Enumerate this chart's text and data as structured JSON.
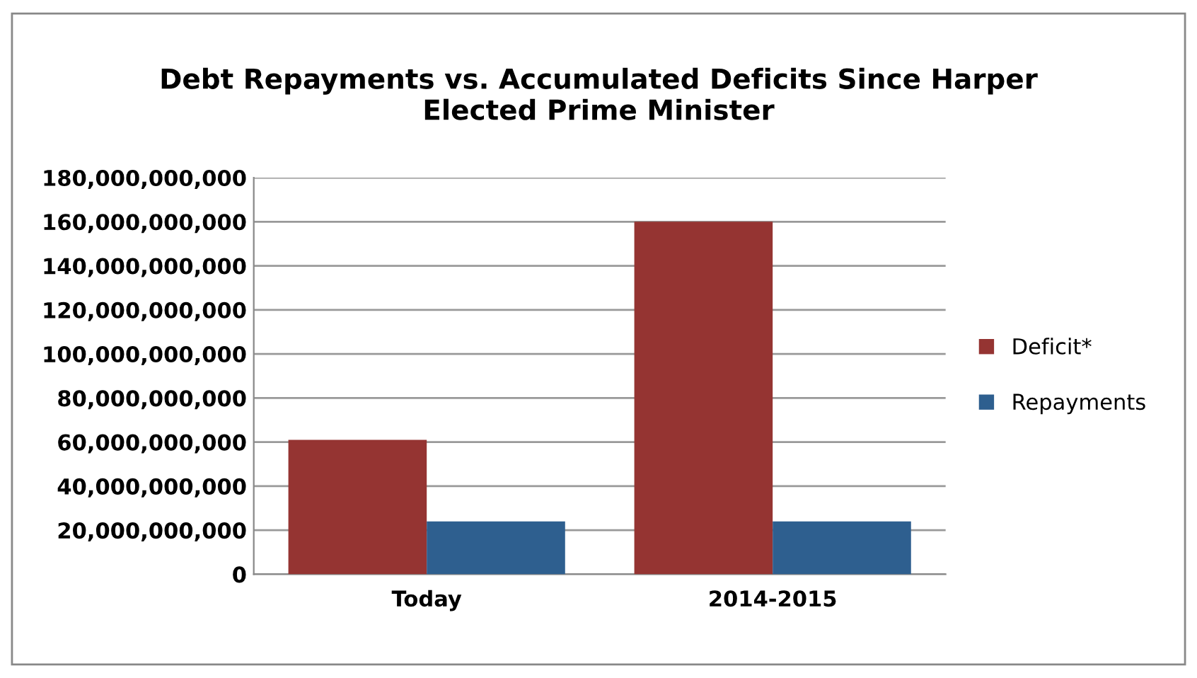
{
  "chart_data": {
    "type": "bar",
    "title": "Debt Repayments vs. Accumulated Deficits Since Harper\nElected Prime Minister",
    "categories": [
      "Today",
      "2014-2015"
    ],
    "series": [
      {
        "name": "Deficit*",
        "color": "#953432",
        "values": [
          61000000000,
          160000000000
        ]
      },
      {
        "name": "Repayments",
        "color": "#2e5f8f",
        "values": [
          24000000000,
          24000000000
        ]
      }
    ],
    "ylim": [
      0,
      180000000000
    ],
    "yticks": [
      {
        "value": 0,
        "label": "0"
      },
      {
        "value": 20000000000,
        "label": "20,000,000,000"
      },
      {
        "value": 40000000000,
        "label": "40,000,000,000"
      },
      {
        "value": 60000000000,
        "label": "60,000,000,000"
      },
      {
        "value": 80000000000,
        "label": "80,000,000,000"
      },
      {
        "value": 100000000000,
        "label": "100,000,000,000"
      },
      {
        "value": 120000000000,
        "label": "120,000,000,000"
      },
      {
        "value": 140000000000,
        "label": "140,000,000,000"
      },
      {
        "value": 160000000000,
        "label": "160,000,000,000"
      },
      {
        "value": 180000000000,
        "label": "180,000,000,000"
      }
    ],
    "grid": "y",
    "legend": "right"
  }
}
